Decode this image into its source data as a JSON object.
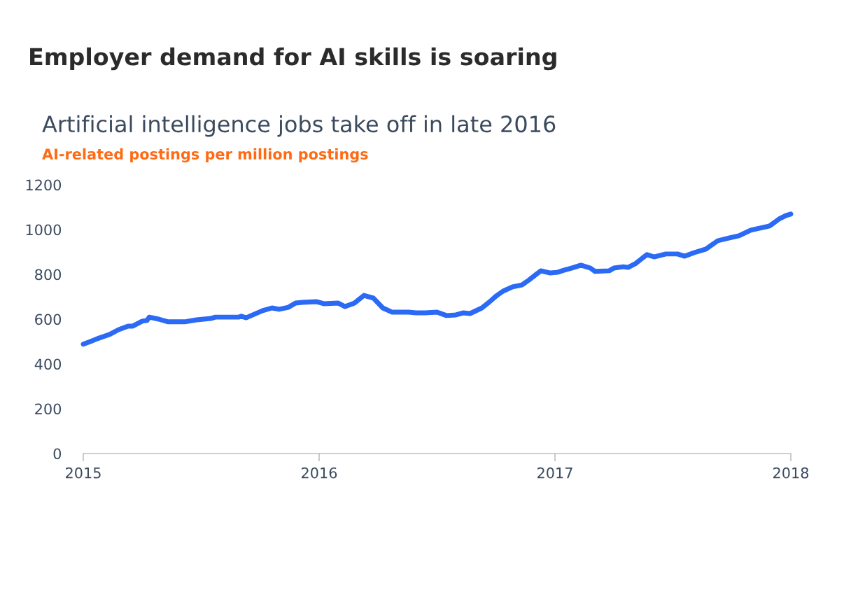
{
  "chart_data": {
    "type": "line",
    "title": "Employer demand for AI skills is soaring",
    "subtitle": "Artificial intelligence jobs take off in late 2016",
    "ylabel": "AI-related postings per million postings",
    "x": [
      2015.0,
      2015.03,
      2015.06,
      2015.11,
      2015.15,
      2015.19,
      2015.21,
      2015.25,
      2015.27,
      2015.28,
      2015.32,
      2015.36,
      2015.43,
      2015.48,
      2015.54,
      2015.56,
      2015.66,
      2015.67,
      2015.69,
      2015.76,
      2015.8,
      2015.83,
      2015.87,
      2015.9,
      2015.93,
      2015.99,
      2016.02,
      2016.08,
      2016.11,
      2016.15,
      2016.19,
      2016.23,
      2016.27,
      2016.31,
      2016.38,
      2016.41,
      2016.45,
      2016.5,
      2016.54,
      2016.58,
      2016.61,
      2016.64,
      2016.69,
      2016.72,
      2016.75,
      2016.78,
      2016.82,
      2016.86,
      2016.89,
      2016.94,
      2016.98,
      2017.01,
      2017.04,
      2017.07,
      2017.11,
      2017.15,
      2017.17,
      2017.23,
      2017.25,
      2017.29,
      2017.31,
      2017.34,
      2017.39,
      2017.42,
      2017.47,
      2017.52,
      2017.55,
      2017.59,
      2017.64,
      2017.69,
      2017.74,
      2017.78,
      2017.83,
      2017.88,
      2017.91,
      2017.95,
      2017.98,
      2018.0
    ],
    "series": [
      {
        "color": "#2a6af5",
        "values": [
          488,
          500,
          513,
          531,
          553,
          569,
          569,
          591,
          594,
          609,
          600,
          588,
          588,
          597,
          603,
          609,
          609,
          613,
          606,
          638,
          650,
          644,
          653,
          672,
          675,
          678,
          669,
          672,
          656,
          672,
          706,
          694,
          650,
          631,
          631,
          628,
          628,
          631,
          616,
          619,
          628,
          625,
          650,
          675,
          703,
          725,
          744,
          753,
          775,
          816,
          806,
          809,
          819,
          828,
          841,
          828,
          813,
          816,
          828,
          834,
          831,
          847,
          888,
          878,
          891,
          891,
          881,
          897,
          913,
          950,
          963,
          972,
          997,
          1009,
          1016,
          1047,
          1063,
          1069
        ]
      }
    ],
    "xlim": [
      2015,
      2018
    ],
    "xticks": [
      2015,
      2016,
      2017,
      2018
    ],
    "ylim": [
      0,
      1200
    ],
    "yticks": [
      0,
      200,
      400,
      600,
      800,
      1000,
      1200
    ],
    "grid": false,
    "legend": false,
    "marker": "none",
    "line_style": "solid"
  }
}
